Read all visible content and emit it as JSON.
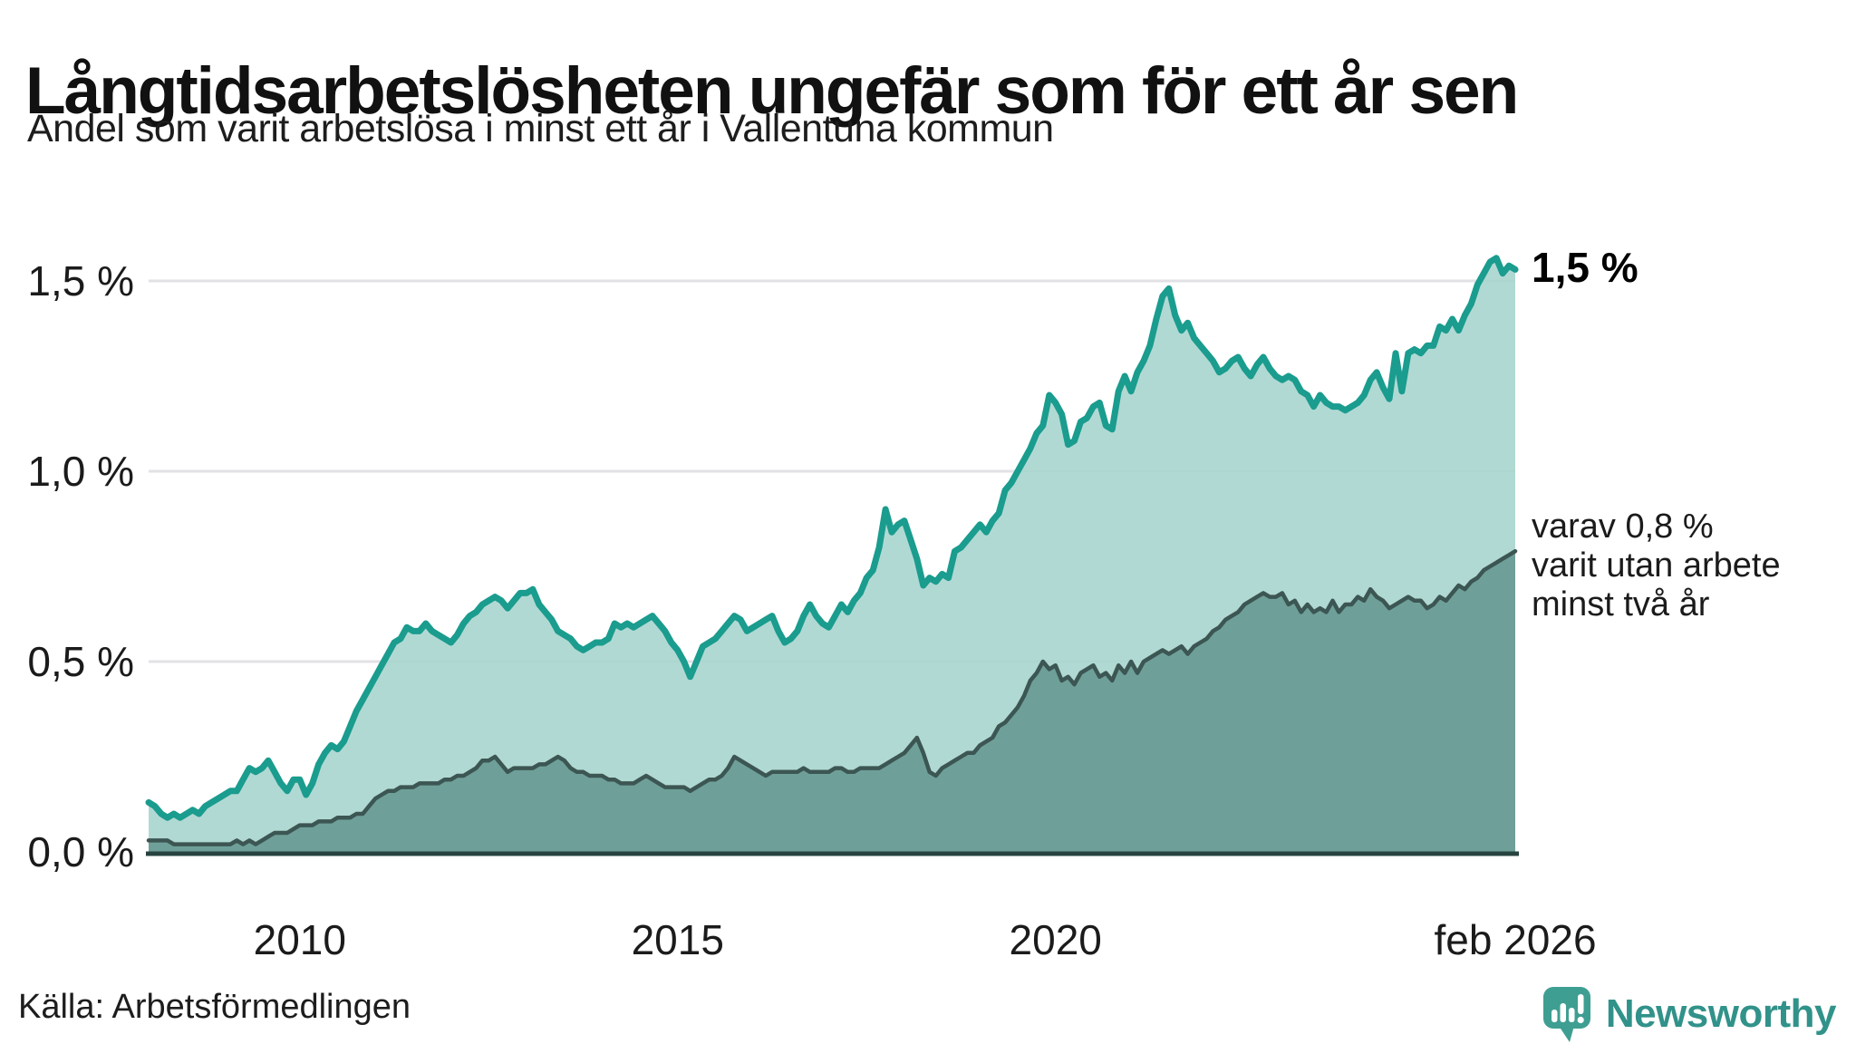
{
  "header": {
    "title": "Långtidsarbetslösheten ungefär som för ett år sen",
    "subtitle": "Andel som varit arbetslösa i minst ett år i Vallentuna kommun"
  },
  "annotations": {
    "latest_total": "1,5 %",
    "subset_lines": [
      "varav 0,8 %",
      "varit utan arbete",
      "minst två år"
    ]
  },
  "footer": {
    "source": "Källa: Arbetsförmedlingen",
    "logo_text": "Newsworthy"
  },
  "colors": {
    "total_line": "#1a9c8e",
    "total_fill": "#a8d5ce",
    "subset_line": "#3c5653",
    "subset_fill": "#679992",
    "gridline": "#e2e2e6",
    "axis": "#26433f",
    "logo_teal": "#3f9e92",
    "logo_text_teal": "#31928a"
  },
  "chart_data": {
    "type": "area",
    "frequency": "monthly",
    "x_start": "jan 2008",
    "x_end": "feb 2026",
    "ylim": [
      0,
      1.6
    ],
    "grid": true,
    "legend_position": "right-annotations",
    "y_ticks": [
      {
        "label": "0,0 %",
        "value": 0.0
      },
      {
        "label": "0,5 %",
        "value": 0.5
      },
      {
        "label": "1,0 %",
        "value": 1.0
      },
      {
        "label": "1,5 %",
        "value": 1.5
      }
    ],
    "x_ticks": [
      {
        "label": "2010",
        "year": 2010.0
      },
      {
        "label": "2015",
        "year": 2015.0
      },
      {
        "label": "2020",
        "year": 2020.0
      },
      {
        "label": "feb 2026",
        "year": 2026.083
      }
    ],
    "series": [
      {
        "name": "Andel arbetslösa minst ett år",
        "end_value_label": "1,5 %",
        "values": [
          0.13,
          0.12,
          0.1,
          0.09,
          0.1,
          0.09,
          0.1,
          0.11,
          0.1,
          0.12,
          0.13,
          0.14,
          0.15,
          0.16,
          0.16,
          0.19,
          0.22,
          0.21,
          0.22,
          0.24,
          0.21,
          0.18,
          0.16,
          0.19,
          0.19,
          0.15,
          0.18,
          0.23,
          0.26,
          0.28,
          0.27,
          0.29,
          0.33,
          0.37,
          0.4,
          0.43,
          0.46,
          0.49,
          0.52,
          0.55,
          0.56,
          0.59,
          0.58,
          0.58,
          0.6,
          0.58,
          0.57,
          0.56,
          0.55,
          0.57,
          0.6,
          0.62,
          0.63,
          0.65,
          0.66,
          0.67,
          0.66,
          0.64,
          0.66,
          0.68,
          0.68,
          0.69,
          0.65,
          0.63,
          0.61,
          0.58,
          0.57,
          0.56,
          0.54,
          0.53,
          0.54,
          0.55,
          0.55,
          0.56,
          0.6,
          0.59,
          0.6,
          0.59,
          0.6,
          0.61,
          0.62,
          0.6,
          0.58,
          0.55,
          0.53,
          0.5,
          0.46,
          0.5,
          0.54,
          0.55,
          0.56,
          0.58,
          0.6,
          0.62,
          0.61,
          0.58,
          0.59,
          0.6,
          0.61,
          0.62,
          0.58,
          0.55,
          0.56,
          0.58,
          0.62,
          0.65,
          0.62,
          0.6,
          0.59,
          0.62,
          0.65,
          0.63,
          0.66,
          0.68,
          0.72,
          0.74,
          0.8,
          0.9,
          0.84,
          0.86,
          0.87,
          0.82,
          0.77,
          0.7,
          0.72,
          0.71,
          0.73,
          0.72,
          0.79,
          0.8,
          0.82,
          0.84,
          0.86,
          0.84,
          0.87,
          0.89,
          0.95,
          0.97,
          1.0,
          1.03,
          1.06,
          1.1,
          1.12,
          1.2,
          1.18,
          1.15,
          1.07,
          1.08,
          1.13,
          1.14,
          1.17,
          1.18,
          1.12,
          1.11,
          1.21,
          1.25,
          1.21,
          1.26,
          1.29,
          1.33,
          1.4,
          1.46,
          1.48,
          1.41,
          1.37,
          1.39,
          1.35,
          1.33,
          1.31,
          1.29,
          1.26,
          1.27,
          1.29,
          1.3,
          1.27,
          1.25,
          1.28,
          1.3,
          1.27,
          1.25,
          1.24,
          1.25,
          1.24,
          1.21,
          1.2,
          1.17,
          1.2,
          1.18,
          1.17,
          1.17,
          1.16,
          1.17,
          1.18,
          1.2,
          1.24,
          1.26,
          1.22,
          1.19,
          1.31,
          1.21,
          1.31,
          1.32,
          1.31,
          1.33,
          1.33,
          1.38,
          1.37,
          1.4,
          1.37,
          1.41,
          1.44,
          1.49,
          1.52,
          1.55,
          1.56,
          1.52,
          1.54,
          1.53
        ]
      },
      {
        "name": "Varav utan arbete minst två år",
        "end_value_label": "0,8 %",
        "values": [
          0.03,
          0.03,
          0.03,
          0.03,
          0.02,
          0.02,
          0.02,
          0.02,
          0.02,
          0.02,
          0.02,
          0.02,
          0.02,
          0.02,
          0.03,
          0.02,
          0.03,
          0.02,
          0.03,
          0.04,
          0.05,
          0.05,
          0.05,
          0.06,
          0.07,
          0.07,
          0.07,
          0.08,
          0.08,
          0.08,
          0.09,
          0.09,
          0.09,
          0.1,
          0.1,
          0.12,
          0.14,
          0.15,
          0.16,
          0.16,
          0.17,
          0.17,
          0.17,
          0.18,
          0.18,
          0.18,
          0.18,
          0.19,
          0.19,
          0.2,
          0.2,
          0.21,
          0.22,
          0.24,
          0.24,
          0.25,
          0.23,
          0.21,
          0.22,
          0.22,
          0.22,
          0.22,
          0.23,
          0.23,
          0.24,
          0.25,
          0.24,
          0.22,
          0.21,
          0.21,
          0.2,
          0.2,
          0.2,
          0.19,
          0.19,
          0.18,
          0.18,
          0.18,
          0.19,
          0.2,
          0.19,
          0.18,
          0.17,
          0.17,
          0.17,
          0.17,
          0.16,
          0.17,
          0.18,
          0.19,
          0.19,
          0.2,
          0.22,
          0.25,
          0.24,
          0.23,
          0.22,
          0.21,
          0.2,
          0.21,
          0.21,
          0.21,
          0.21,
          0.21,
          0.22,
          0.21,
          0.21,
          0.21,
          0.21,
          0.22,
          0.22,
          0.21,
          0.21,
          0.22,
          0.22,
          0.22,
          0.22,
          0.23,
          0.24,
          0.25,
          0.26,
          0.28,
          0.3,
          0.26,
          0.21,
          0.2,
          0.22,
          0.23,
          0.24,
          0.25,
          0.26,
          0.26,
          0.28,
          0.29,
          0.3,
          0.33,
          0.34,
          0.36,
          0.38,
          0.41,
          0.45,
          0.47,
          0.5,
          0.48,
          0.49,
          0.45,
          0.46,
          0.44,
          0.47,
          0.48,
          0.49,
          0.46,
          0.47,
          0.45,
          0.49,
          0.47,
          0.5,
          0.47,
          0.5,
          0.51,
          0.52,
          0.53,
          0.52,
          0.53,
          0.54,
          0.52,
          0.54,
          0.55,
          0.56,
          0.58,
          0.59,
          0.61,
          0.62,
          0.63,
          0.65,
          0.66,
          0.67,
          0.68,
          0.67,
          0.67,
          0.68,
          0.65,
          0.66,
          0.63,
          0.65,
          0.63,
          0.64,
          0.63,
          0.66,
          0.63,
          0.65,
          0.65,
          0.67,
          0.66,
          0.69,
          0.67,
          0.66,
          0.64,
          0.65,
          0.66,
          0.67,
          0.66,
          0.66,
          0.64,
          0.65,
          0.67,
          0.66,
          0.68,
          0.7,
          0.69,
          0.71,
          0.72,
          0.74,
          0.75,
          0.76,
          0.77,
          0.78,
          0.79
        ]
      }
    ]
  }
}
